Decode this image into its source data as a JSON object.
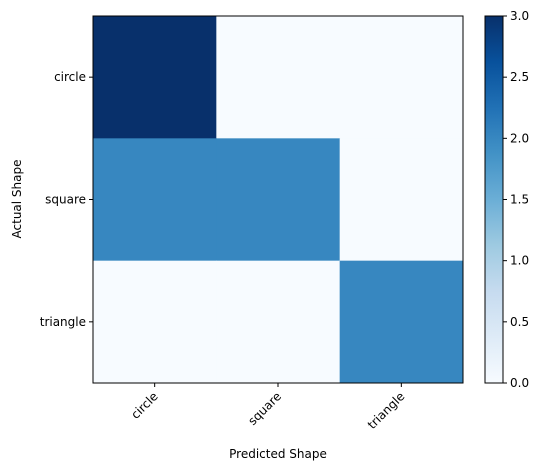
{
  "chart_data": {
    "type": "heatmap",
    "xlabel": "Predicted Shape",
    "ylabel": "Actual Shape",
    "x_categories": [
      "circle",
      "square",
      "triangle"
    ],
    "y_categories": [
      "circle",
      "square",
      "triangle"
    ],
    "values": [
      [
        3,
        0,
        0
      ],
      [
        2,
        2,
        0
      ],
      [
        0,
        0,
        2
      ]
    ],
    "colormap": "Blues",
    "colorbar": {
      "range": [
        0,
        3
      ],
      "ticks": [
        0.0,
        0.5,
        1.0,
        1.5,
        2.0,
        2.5,
        3.0
      ],
      "tick_labels": [
        "0.0",
        "0.5",
        "1.0",
        "1.5",
        "2.0",
        "2.5",
        "3.0"
      ],
      "colors": [
        "#f7fbff",
        "#deebf7",
        "#c6dbef",
        "#9ecae1",
        "#6baed6",
        "#4292c6",
        "#2171b5",
        "#08519c",
        "#08306b"
      ]
    },
    "x_tick_rotation_deg": 45,
    "grid": false
  }
}
